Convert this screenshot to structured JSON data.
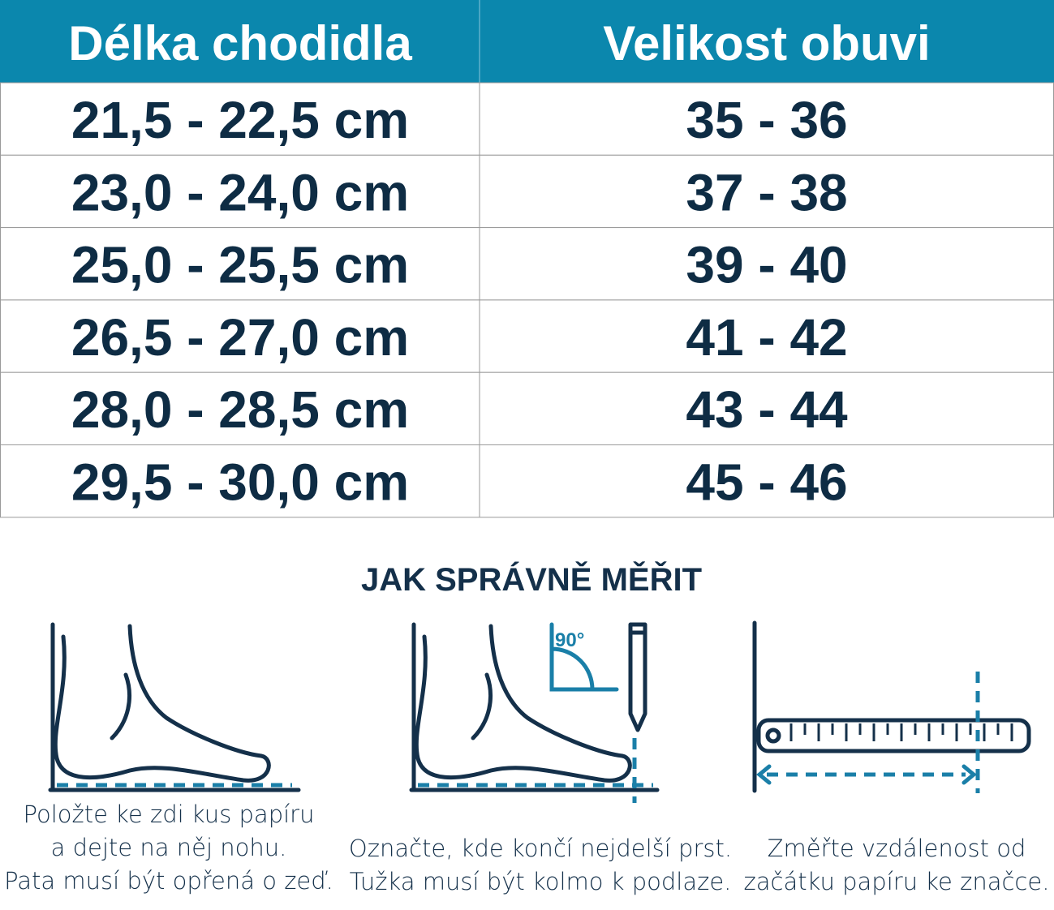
{
  "table": {
    "header": [
      "Délka chodidla",
      "Velikost obuvi"
    ],
    "rows": [
      [
        "21,5 - 22,5 cm",
        "35 - 36"
      ],
      [
        "23,0 - 24,0 cm",
        "37 - 38"
      ],
      [
        "25,0 - 25,5 cm",
        "39 - 40"
      ],
      [
        "26,5 - 27,0 cm",
        "41 - 42"
      ],
      [
        "28,0 - 28,5 cm",
        "43 - 44"
      ],
      [
        "29,5 - 30,0 cm",
        "45 - 46"
      ]
    ]
  },
  "instructions": {
    "title": "JAK SPRÁVNĚ MĚŘIT",
    "angle_label": "90°",
    "steps": [
      {
        "lines": [
          "Položte ke zdi kus papíru",
          "a dejte na něj nohu.",
          "Pata musí být opřená o zeď."
        ]
      },
      {
        "lines": [
          "Označte, kde končí nejdelší prst.",
          "Tužka musí být kolmo k podlaze."
        ]
      },
      {
        "lines": [
          "Změřte vzdálenost od",
          "začátku papíru ke značce."
        ]
      }
    ]
  }
}
